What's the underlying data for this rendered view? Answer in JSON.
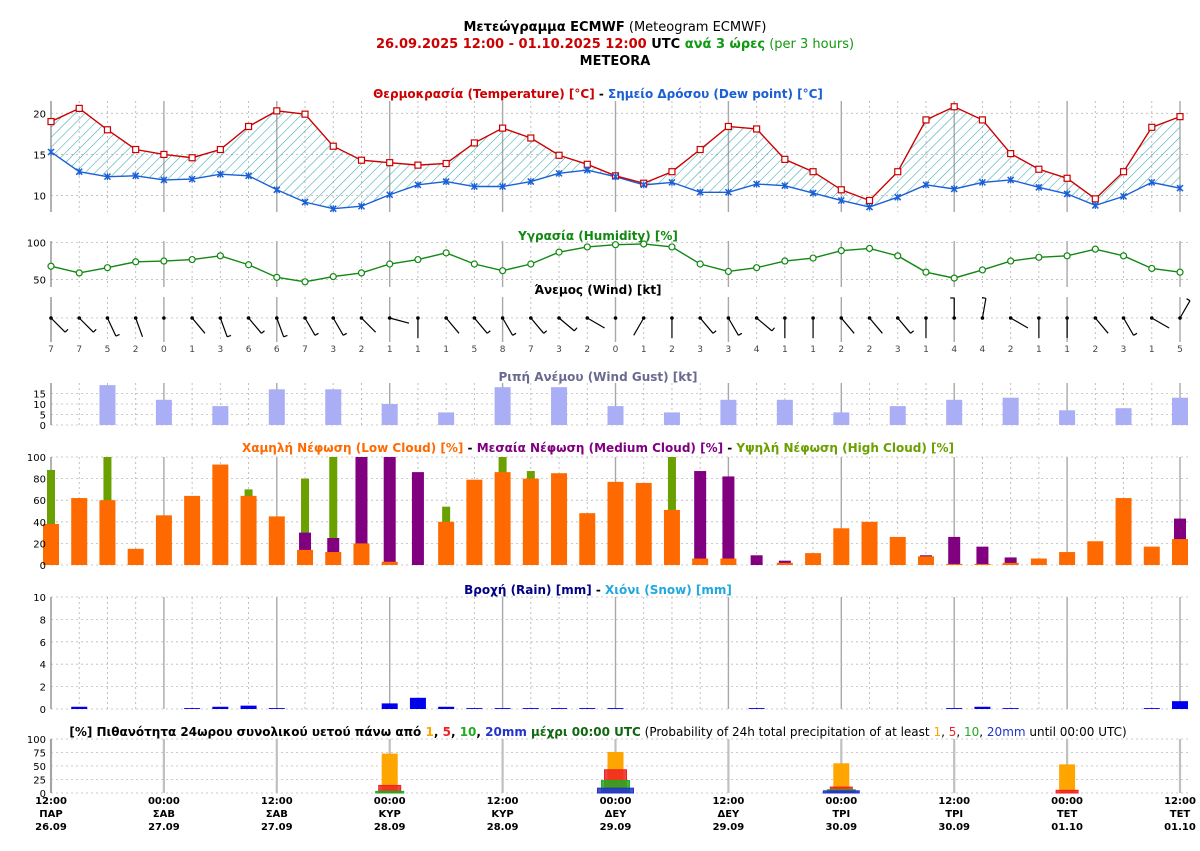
{
  "header": {
    "line1_bold": "Μετεώγραμμα ECMWF",
    "line1_normal": " (Meteogram ECMWF)",
    "line2_dates": "26.09.2025 12:00 - 01.10.2025 12:00",
    "line2_utc": " UTC ",
    "line2_every": "ανά 3 ώρες",
    "line2_per": " (per 3 hours)",
    "location": "METEORA"
  },
  "colors": {
    "temperature": "#cc0000",
    "dewpoint": "#1a5fd6",
    "dp_fill_hatch": "#3aa7b5",
    "humidity": "#118811",
    "gust": "#a9aef5",
    "low_cloud": "#ff6a00",
    "medium_cloud": "#800080",
    "high_cloud": "#6aa000",
    "rain": "#0000ee",
    "snow": "#20a8e0",
    "p1": "#ffa500",
    "p5": "#ee2222",
    "p10": "#22aa22",
    "p20": "#2233cc"
  },
  "panels": {
    "temperature": {
      "title_a": "Θερμοκρασία (Temperature) [°C]",
      "sep": " - ",
      "title_b": "Σημείο Δρόσου (Dew point) [°C]",
      "yticks": [
        "10",
        "15",
        "20"
      ]
    },
    "humidity": {
      "title": "Υγρασία (Humidity) [%]",
      "yticks": [
        "50",
        "100"
      ]
    },
    "wind": {
      "title": "Άνεμος (Wind) [kt]"
    },
    "gust": {
      "title": "Ριπή Ανέμου (Wind Gust) [kt]",
      "yticks": [
        "0",
        "5",
        "10",
        "15"
      ]
    },
    "cloud": {
      "title_a": "Χαμηλή Νέφωση (Low Cloud) [%]",
      "sep1": " - ",
      "title_b": "Μεσαία Νέφωση (Medium Cloud) [%]",
      "sep2": " - ",
      "title_c": "Υψηλή Νέφωση (High Cloud) [%]",
      "yticks": [
        "0",
        "20",
        "40",
        "60",
        "80",
        "100"
      ]
    },
    "precip": {
      "title_a": "Βροχή (Rain) [mm]",
      "sep": " - ",
      "title_b": "Χιόνι (Snow) [mm]",
      "yticks": [
        "0",
        "2",
        "4",
        "6",
        "8",
        "10"
      ]
    },
    "prob": {
      "t1": "[%] Πιθανότητα 24ωρου συνολικού υετού πάνω από ",
      "v1": "1",
      "c1": ", ",
      "v5": "5",
      "c2": ", ",
      "v10": "10",
      "c3": ", ",
      "v20": "20mm",
      "t2": " μέχρι 00:00 UTC",
      "t3": " (Probability of 24h total precipitation of at least ",
      "u1": "1",
      "uc1": ", ",
      "u5": "5",
      "uc2": ", ",
      "u10": "10",
      "uc3": ", ",
      "u20": "20mm",
      "t4": " until 00:00 UTC)",
      "yticks": [
        "0",
        "25",
        "50",
        "75",
        "100"
      ]
    }
  },
  "time_axis": [
    {
      "time": "12:00",
      "day": "ΠΑΡ",
      "date": "26.09"
    },
    {
      "time": "00:00",
      "day": "ΣΑΒ",
      "date": "27.09"
    },
    {
      "time": "12:00",
      "day": "ΣΑΒ",
      "date": "27.09"
    },
    {
      "time": "00:00",
      "day": "ΚΥΡ",
      "date": "28.09"
    },
    {
      "time": "12:00",
      "day": "ΚΥΡ",
      "date": "28.09"
    },
    {
      "time": "00:00",
      "day": "ΔΕΥ",
      "date": "29.09"
    },
    {
      "time": "12:00",
      "day": "ΔΕΥ",
      "date": "29.09"
    },
    {
      "time": "00:00",
      "day": "ΤΡΙ",
      "date": "30.09"
    },
    {
      "time": "12:00",
      "day": "ΤΡΙ",
      "date": "30.09"
    },
    {
      "time": "00:00",
      "day": "ΤΕΤ",
      "date": "01.10"
    },
    {
      "time": "12:00",
      "day": "ΤΕΤ",
      "date": "01.10"
    }
  ],
  "chart_data": [
    {
      "type": "line",
      "title": "Θερμοκρασία (Temperature) [°C] - Σημείο Δρόσου (Dew point) [°C]",
      "x_step_hours": 3,
      "ylim": [
        8,
        21.5
      ],
      "series": [
        {
          "name": "Θερμοκρασία (Temperature) [°C]",
          "values": [
            19,
            20.6,
            18,
            15.6,
            15,
            14.6,
            15.6,
            18.4,
            20.3,
            19.9,
            16,
            14.3,
            14,
            13.7,
            13.9,
            16.4,
            18.2,
            17,
            14.9,
            13.8,
            12.4,
            11.5,
            12.9,
            15.6,
            18.4,
            18.1,
            14.4,
            12.9,
            10.7,
            9.4,
            12.9,
            19.2,
            20.8,
            19.2,
            15.1,
            13.2,
            12.1,
            9.6,
            12.9,
            18.3,
            19.6
          ]
        },
        {
          "name": "Σημείο Δρόσου (Dew point) [°C]",
          "values": [
            15.3,
            12.9,
            12.3,
            12.4,
            11.9,
            12,
            12.6,
            12.4,
            10.7,
            9.2,
            8.4,
            8.7,
            10.1,
            11.3,
            11.7,
            11.1,
            11.1,
            11.7,
            12.7,
            13.1,
            12.3,
            11.3,
            11.6,
            10.4,
            10.4,
            11.4,
            11.2,
            10.3,
            9.4,
            8.6,
            9.8,
            11.3,
            10.8,
            11.6,
            11.9,
            11,
            10.2,
            8.8,
            9.9,
            11.6,
            10.9
          ]
        }
      ]
    },
    {
      "type": "line",
      "title": "Υγρασία (Humidity) [%]",
      "ylim": [
        40,
        102
      ],
      "series": [
        {
          "name": "Υγρασία (Humidity) [%]",
          "values": [
            68,
            59,
            66,
            74,
            75,
            77,
            82,
            70,
            53,
            47,
            54,
            59,
            71,
            77,
            86,
            71,
            62,
            71,
            87,
            94,
            97,
            98,
            94,
            71,
            61,
            66,
            75,
            79,
            89,
            92,
            82,
            60,
            52,
            63,
            75,
            80,
            82,
            91,
            82,
            65,
            60
          ]
        }
      ]
    },
    {
      "type": "table",
      "title": "Άνεμος (Wind) [kt]",
      "speeds": [
        7,
        7,
        5,
        2,
        0,
        1,
        3,
        6,
        6,
        7,
        3,
        2,
        1,
        1,
        1,
        5,
        8,
        7,
        3,
        2,
        0,
        1,
        2,
        3,
        3,
        4,
        1,
        1,
        2,
        2,
        3,
        1,
        4,
        4,
        2,
        1,
        1,
        2,
        3,
        1,
        5
      ],
      "dirs_from_deg": [
        315,
        315,
        335,
        340,
        0,
        320,
        340,
        320,
        340,
        330,
        330,
        315,
        285,
        0,
        320,
        320,
        330,
        320,
        310,
        300,
        0,
        30,
        0,
        320,
        330,
        310,
        0,
        0,
        320,
        320,
        320,
        0,
        180,
        190,
        300,
        0,
        0,
        320,
        330,
        300,
        210
      ]
    },
    {
      "type": "bar",
      "title": "Ριπή Ανέμου (Wind Gust) [kt]",
      "ylim": [
        0,
        20
      ],
      "values": [
        null,
        null,
        19,
        null,
        12,
        null,
        9,
        null,
        17,
        null,
        17,
        null,
        10,
        null,
        6,
        null,
        18,
        null,
        18,
        null,
        9,
        null,
        6,
        null,
        12,
        null,
        12,
        null,
        6,
        null,
        9,
        null,
        12,
        null,
        13,
        null,
        7,
        null,
        8,
        null,
        13
      ]
    },
    {
      "type": "bar",
      "title": "Χαμηλή Νέφωση (Low Cloud) [%] - Μεσαία Νέφωση (Medium Cloud) [%] - Υψηλή Νέφωση (High Cloud) [%]",
      "ylim": [
        0,
        100
      ],
      "series": [
        {
          "name": "Υψηλή Νέφωση (High Cloud) [%]",
          "values": [
            88,
            0,
            100,
            0,
            0,
            0,
            0,
            70,
            0,
            80,
            100,
            0,
            0,
            0,
            54,
            0,
            100,
            87,
            0,
            0,
            0,
            0,
            100,
            0,
            0,
            0,
            0,
            0,
            0,
            0,
            0,
            0,
            0,
            0,
            0,
            0,
            0,
            0,
            0,
            0,
            0
          ]
        },
        {
          "name": "Μεσαία Νέφωση (Medium Cloud) [%]",
          "values": [
            0,
            0,
            0,
            0,
            0,
            0,
            0,
            0,
            0,
            30,
            25,
            100,
            100,
            86,
            0,
            0,
            0,
            0,
            0,
            0,
            0,
            0,
            0,
            87,
            82,
            9,
            4,
            0,
            0,
            0,
            0,
            9,
            26,
            17,
            7,
            0,
            0,
            0,
            0,
            0,
            43
          ]
        },
        {
          "name": "Χαμηλή Νέφωση (Low Cloud) [%]",
          "values": [
            38,
            62,
            60,
            15,
            46,
            64,
            93,
            64,
            45,
            14,
            12,
            20,
            3,
            0,
            40,
            79,
            86,
            80,
            85,
            48,
            77,
            76,
            51,
            6,
            6,
            0,
            2,
            11,
            34,
            40,
            26,
            8,
            1,
            1,
            2,
            6,
            12,
            22,
            62,
            17,
            24
          ]
        }
      ]
    },
    {
      "type": "bar",
      "title": "Βροχή (Rain) [mm] - Χιόνι (Snow) [mm]",
      "ylim": [
        0,
        10
      ],
      "series": [
        {
          "name": "Βροχή (Rain) [mm]",
          "values": [
            0,
            0.2,
            0,
            0,
            0,
            0.08,
            0.2,
            0.3,
            0.08,
            0,
            0,
            0,
            0.5,
            1.0,
            0.2,
            0.08,
            0.08,
            0.08,
            0.08,
            0.08,
            0.08,
            0,
            0,
            0,
            0,
            0.08,
            0,
            0,
            0,
            0,
            0,
            0,
            0.08,
            0.2,
            0.08,
            0,
            0,
            0,
            0,
            0.08,
            0.7
          ]
        },
        {
          "name": "Χιόνι (Snow) [mm]",
          "values": [
            0,
            0,
            0,
            0,
            0,
            0,
            0,
            0,
            0,
            0,
            0,
            0,
            0,
            0,
            0,
            0,
            0,
            0,
            0,
            0,
            0,
            0,
            0,
            0,
            0,
            0,
            0,
            0,
            0,
            0,
            0,
            0,
            0,
            0,
            0,
            0,
            0,
            0,
            0,
            0,
            0
          ]
        }
      ]
    },
    {
      "type": "bar",
      "title": "[%] Πιθανότητα 24ωρου συνολικού υετού πάνω από 1, 5, 10, 20mm μέχρι 00:00 UTC",
      "categories": [
        "28.09",
        "29.09",
        "30.09",
        "01.10"
      ],
      "ylim": [
        0,
        100
      ],
      "series": [
        {
          "name": "1",
          "values": [
            73,
            76,
            55,
            53
          ]
        },
        {
          "name": "5",
          "values": [
            14,
            43,
            11,
            5
          ]
        },
        {
          "name": "10",
          "values": [
            3,
            23,
            6,
            0
          ]
        },
        {
          "name": "20",
          "values": [
            0,
            9,
            4,
            0
          ]
        }
      ]
    }
  ]
}
